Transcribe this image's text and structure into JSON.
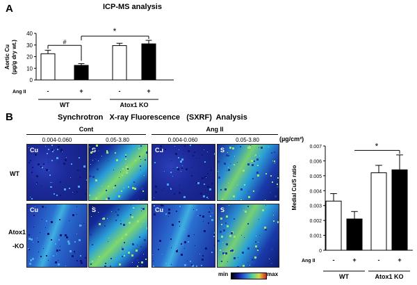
{
  "panel_a": {
    "letter": "A",
    "title": "ICP-MS analysis",
    "ylabel_line1": "Aortic Cu",
    "ylabel_line2": "(µg/g dry wt.)",
    "treatment_label": "Ang II",
    "hash_mark": "#",
    "star_mark": "*",
    "groups": [
      "WT",
      "Atox1 KO"
    ]
  },
  "panel_b": {
    "letter": "B",
    "title": "Synchrotron   X-ray Fluorescence   (SXRF)  Analysis",
    "cont_label": "Cont",
    "ang_label": "Ang II",
    "range_cu": "0.004-0.060",
    "range_s": "0.05-3.80",
    "units": "(µg/cm²)",
    "row_wt": "WT",
    "row_ko_1": "Atox1",
    "row_ko_2": "-KO",
    "map_cu": "Cu",
    "map_s": "S",
    "scale_min": "min",
    "scale_max": "max"
  },
  "chart_data": [
    {
      "type": "bar",
      "ylabel": "Aortic Cu (µg/g dry wt.)",
      "ylim": [
        0,
        40
      ],
      "yticks": [
        "0",
        "10",
        "20",
        "30",
        "40"
      ],
      "categories": [
        "-",
        "+",
        "-",
        "+"
      ],
      "groups": [
        "WT",
        "Atox1 KO"
      ],
      "values": [
        22.5,
        12.5,
        29.5,
        31.0
      ],
      "errors": [
        3.0,
        1.5,
        2.0,
        3.0
      ],
      "colors": [
        "#ffffff",
        "#000000",
        "#ffffff",
        "#000000"
      ]
    },
    {
      "type": "bar",
      "ylabel": "Medial Cu/S ratio",
      "ylim": [
        0,
        0.007
      ],
      "yticks": [
        "0",
        "0.001",
        "0.002",
        "0.003",
        "0.004",
        "0.005",
        "0.006",
        "0.007"
      ],
      "categories": [
        "-",
        "+",
        "-",
        "+"
      ],
      "groups": [
        "WT",
        "Atox1 KO"
      ],
      "values": [
        0.0033,
        0.0021,
        0.0052,
        0.0054
      ],
      "errors": [
        0.0005,
        0.0005,
        0.0005,
        0.001
      ],
      "colors": [
        "#ffffff",
        "#000000",
        "#ffffff",
        "#000000"
      ],
      "star_mark": "*"
    }
  ]
}
